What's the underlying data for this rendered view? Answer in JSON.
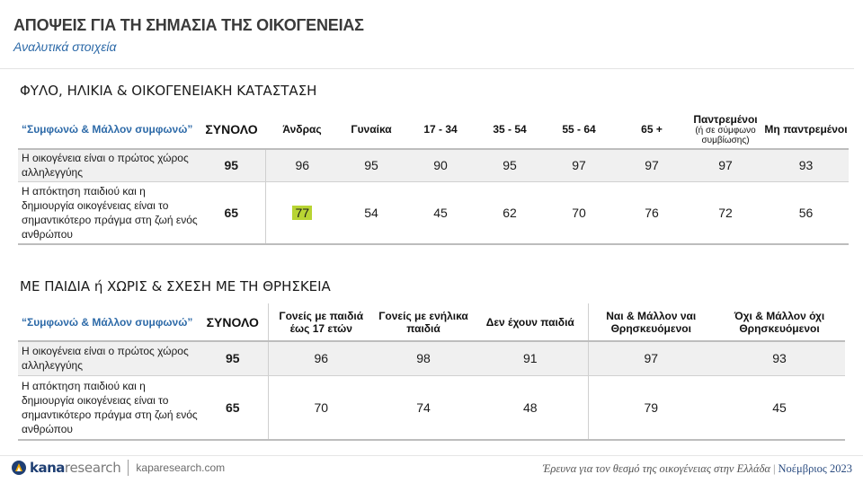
{
  "header": {
    "title": "ΑΠΟΨΕΙΣ ΓΙΑ ΤΗ ΣΗΜΑΣΙΑ ΤΗΣ ΟΙΚΟΓΕΝΕΙΑΣ",
    "subtitle": "Αναλυτικά στοιχεία"
  },
  "section1": {
    "title": "ΦΥΛΟ, ΗΛΙΚΙΑ & ΟΙΚΟΓΕΝΕΙΑΚΗ ΚΑΤΑΣΤΑΣΗ",
    "lead_header": "“Συμφωνώ & Μάλλον συμφωνώ”",
    "total_header": "ΣΥΝΟΛΟ",
    "columns": [
      "Άνδρας",
      "Γυναίκα",
      "17 - 34",
      "35 - 54",
      "55 - 64",
      "65 +"
    ],
    "married_header": "Παντρεμένοι",
    "married_note": "(ή σε σύμφωνο συμβίωσης)",
    "unmarried_header": "Μη παντρεμένοι",
    "rows": [
      {
        "label": "Η οικογένεια είναι ο πρώτος χώρος αλληλεγγύης",
        "total": "95",
        "values": [
          "96",
          "95",
          "90",
          "95",
          "97",
          "97"
        ],
        "married": "97",
        "unmarried": "93"
      },
      {
        "label": "Η απόκτηση παιδιού και η δημιουργία οικογένειας είναι το σημαντικότερο πράγμα στη ζωή ενός ανθρώπου",
        "total": "65",
        "values": [
          "77",
          "54",
          "45",
          "62",
          "70",
          "76"
        ],
        "married": "72",
        "unmarried": "56"
      }
    ],
    "highlight_color": "#b8d433"
  },
  "section2": {
    "title": "ΜΕ ΠΑΙΔΙΑ ή ΧΩΡΙΣ & ΣΧΕΣΗ ΜΕ ΤΗ ΘΡΗΣΚΕΙΑ",
    "lead_header": "“Συμφωνώ & Μάλλον συμφωνώ”",
    "total_header": "ΣΥΝΟΛΟ",
    "columns": [
      "Γονείς με παιδιά έως 17 ετών",
      "Γονείς με ενήλικα παιδιά",
      "Δεν έχουν παιδιά",
      "Ναι & Μάλλον ναι Θρησκευόμενοι",
      "Όχι & Μάλλον όχι Θρησκευόμενοι"
    ],
    "rows": [
      {
        "label": "Η οικογένεια είναι ο πρώτος χώρος αλληλεγγύης",
        "total": "95",
        "values": [
          "96",
          "98",
          "91",
          "97",
          "93"
        ]
      },
      {
        "label": "Η απόκτηση παιδιού και η δημιουργία οικογένειας είναι το σημαντικότερο πράγμα στη ζωή ενός ανθρώπου",
        "total": "65",
        "values": [
          "70",
          "74",
          "48",
          "79",
          "45"
        ]
      }
    ]
  },
  "footer": {
    "logo_kana": "kana",
    "logo_research": "research",
    "website": "kaparesearch.com",
    "note": "Έρευνα για τον θεσμό της οικογένειας στην Ελλάδα",
    "separator": "|",
    "date": "Νοέμβριος 2023",
    "brand_color": "#1f3f73"
  }
}
